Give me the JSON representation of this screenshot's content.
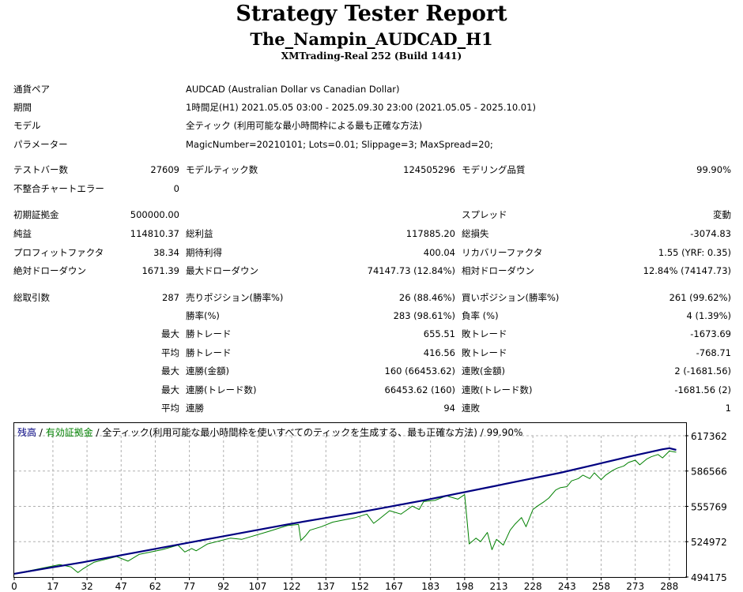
{
  "report": {
    "title": "Strategy Tester Report",
    "subtitle": "The_Nampin_AUDCAD_H1",
    "server": "XMTrading-Real 252 (Build 1441)"
  },
  "settings": [
    {
      "label": "通貨ペア",
      "value": "AUDCAD (Australian Dollar vs Canadian Dollar)"
    },
    {
      "label": "期間",
      "value": "1時間足(H1) 2021.05.05 03:00 - 2025.09.30 23:00 (2021.05.05 - 2025.10.01)"
    },
    {
      "label": "モデル",
      "value": "全ティック (利用可能な最小時間枠による最も正確な方法)"
    },
    {
      "label": "パラメーター",
      "value": "MagicNumber=20210101; Lots=0.01; Slippage=3; MaxSpread=20;"
    }
  ],
  "stats": {
    "bars_label": "テストバー数",
    "bars": "27609",
    "ticks_label": "モデルティック数",
    "ticks": "124505296",
    "quality_label": "モデリング品質",
    "quality": "99.90%",
    "mismatch_label": "不整合チャートエラー",
    "mismatch": "0",
    "deposit_label": "初期証拠金",
    "deposit": "500000.00",
    "spread_label": "スプレッド",
    "spread": "変動",
    "net_profit_label": "純益",
    "net_profit": "114810.37",
    "gross_profit_label": "総利益",
    "gross_profit": "117885.20",
    "gross_loss_label": "総損失",
    "gross_loss": "-3074.83",
    "profit_factor_label": "プロフィットファクタ",
    "profit_factor": "38.34",
    "expected_payoff_label": "期待利得",
    "expected_payoff": "400.04",
    "recovery_factor_label": "リカバリーファクタ",
    "recovery_factor": "1.55 (YRF: 0.35)",
    "abs_dd_label": "絶対ドローダウン",
    "abs_dd": "1671.39",
    "max_dd_label": "最大ドローダウン",
    "max_dd": "74147.73 (12.84%)",
    "rel_dd_label": "相対ドローダウン",
    "rel_dd": "12.84% (74147.73)",
    "total_trades_label": "総取引数",
    "total_trades": "287",
    "short_label": "売りポジション(勝率%)",
    "short": "26 (88.46%)",
    "long_label": "買いポジション(勝率%)",
    "long": "261 (99.62%)",
    "win_pct_label": "勝率(%)",
    "win_pct": "283 (98.61%)",
    "loss_pct_label": "負率 (%)",
    "loss_pct": "4 (1.39%)",
    "largest_label": "最大",
    "largest_win_label": "勝トレード",
    "largest_win": "655.51",
    "largest_loss_label": "敗トレード",
    "largest_loss": "-1673.69",
    "average_label": "平均",
    "average_win_label": "勝トレード",
    "average_win": "416.56",
    "average_loss_label": "敗トレード",
    "average_loss": "-768.71",
    "max_cons_label": "最大",
    "max_cons_wins_label": "連勝(金額)",
    "max_cons_wins": "160 (66453.62)",
    "max_cons_losses_label": "連敗(金額)",
    "max_cons_losses": "2 (-1681.56)",
    "max_cons2_label": "最大",
    "max_cons_profit_label": "連勝(トレード数)",
    "max_cons_profit": "66453.62 (160)",
    "max_cons_loss_label": "連敗(トレード数)",
    "max_cons_loss": "-1681.56 (2)",
    "avg_cons_label": "平均",
    "avg_cons_wins_label": "連勝",
    "avg_cons_wins": "94",
    "avg_cons_losses_label": "連敗",
    "avg_cons_losses": "1"
  },
  "legend": {
    "balance": "残高",
    "sep1": " / ",
    "equity": "有効証拠金",
    "sep2": " / ",
    "rest": "全ティック(利用可能な最小時間枠を使いすべてのティックを生成する、最も正確な方法) / 99.90%"
  },
  "chart_data": {
    "type": "line",
    "x_ticks": [
      0,
      17,
      32,
      47,
      62,
      77,
      92,
      107,
      122,
      137,
      152,
      167,
      183,
      198,
      213,
      228,
      243,
      258,
      273,
      288
    ],
    "y_ticks": [
      494175,
      524972,
      555769,
      586566,
      617362
    ],
    "ylim": [
      494175,
      617362
    ],
    "xlim": [
      0,
      295
    ],
    "grid": true,
    "colors": {
      "balance": "#000080",
      "equity": "#008000"
    },
    "series": [
      {
        "name": "残高",
        "x": [
          0,
          15,
          30,
          45,
          60,
          75,
          90,
          105,
          120,
          135,
          150,
          165,
          180,
          195,
          210,
          225,
          240,
          255,
          270,
          285,
          288,
          291
        ],
        "values": [
          497000,
          502000,
          507000,
          512500,
          518000,
          523500,
          529000,
          534500,
          540000,
          545000,
          550000,
          555500,
          561000,
          567000,
          573000,
          579000,
          585000,
          592000,
          599000,
          605500,
          606500,
          605000
        ]
      },
      {
        "name": "有効証拠金",
        "x": [
          0,
          10,
          20,
          25,
          28,
          30,
          35,
          45,
          50,
          55,
          65,
          72,
          75,
          78,
          80,
          85,
          95,
          100,
          112,
          120,
          125,
          126,
          128,
          130,
          135,
          140,
          145,
          150,
          155,
          158,
          160,
          165,
          170,
          175,
          178,
          180,
          185,
          190,
          195,
          198,
          199,
          200,
          203,
          205,
          208,
          210,
          212,
          215,
          218,
          220,
          223,
          225,
          228,
          230,
          233,
          235,
          238,
          240,
          243,
          245,
          248,
          250,
          253,
          255,
          258,
          260,
          263,
          265,
          268,
          270,
          273,
          275,
          278,
          280,
          283,
          285,
          288,
          291
        ],
        "values": [
          497000,
          501000,
          505000,
          503000,
          498000,
          501000,
          507000,
          512000,
          508000,
          514000,
          518000,
          522000,
          516000,
          519000,
          517000,
          523000,
          528000,
          527000,
          534000,
          539000,
          540000,
          526000,
          530000,
          535000,
          538000,
          542000,
          544000,
          546000,
          549000,
          541000,
          544000,
          552000,
          549000,
          556000,
          553000,
          560000,
          561000,
          565000,
          562000,
          566000,
          545000,
          523000,
          528000,
          525000,
          533000,
          518000,
          527000,
          522000,
          535000,
          540000,
          546000,
          538000,
          553000,
          556000,
          560000,
          563000,
          570000,
          572000,
          573000,
          578000,
          580000,
          583000,
          580000,
          585000,
          579000,
          583000,
          587000,
          589000,
          591000,
          594000,
          596000,
          592000,
          597000,
          599000,
          601000,
          598000,
          604000,
          603000
        ]
      }
    ]
  }
}
